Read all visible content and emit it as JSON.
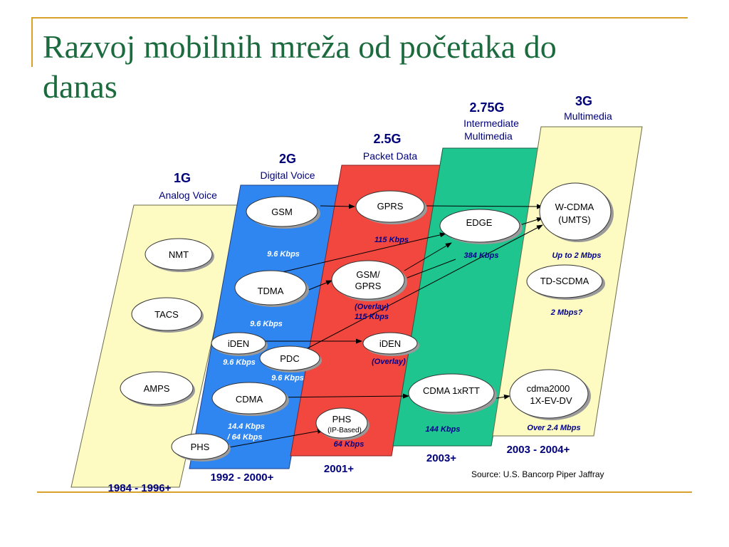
{
  "slide": {
    "title_line1": "Razvoj mobilnih mreža od početaka  do",
    "title_line2": "danas"
  },
  "colors": {
    "title": "#1c6b3e",
    "accent_line": "#d8a12a",
    "band_1g": "#fdfbc2",
    "band_2g": "#2f86f0",
    "band_2_5g": "#f2473f",
    "band_2_75g": "#1ec58e",
    "band_3g": "#fdfbc2",
    "label_blue": "#00007a"
  },
  "generations": [
    {
      "name": "1G",
      "subtitle": "Analog Voice",
      "years": "1984 - 1996+"
    },
    {
      "name": "2G",
      "subtitle": "Digital Voice",
      "years": "1992 - 2000+"
    },
    {
      "name": "2.5G",
      "subtitle": "Packet Data",
      "years": "2001+"
    },
    {
      "name": "2.75G",
      "subtitle_line1": "Intermediate",
      "subtitle_line2": "Multimedia",
      "years": "2003+"
    },
    {
      "name": "3G",
      "subtitle": "Multimedia",
      "years": "2003 - 2004+"
    }
  ],
  "technologies": {
    "nmt": "NMT",
    "tacs": "TACS",
    "amps": "AMPS",
    "gsm": "GSM",
    "tdma": "TDMA",
    "iden_2g": "iDEN",
    "pdc": "PDC",
    "cdma": "CDMA",
    "phs_2g": "PHS",
    "gprs": "GPRS",
    "gsm_gprs_line1": "GSM/",
    "gsm_gprs_line2": "GPRS",
    "iden_2_5g": "iDEN",
    "phs_ip_line1": "PHS",
    "phs_ip_line2": "(IP-Based)",
    "edge": "EDGE",
    "cdma_1xrtt": "CDMA 1xRTT",
    "wcdma_line1": "W-CDMA",
    "wcdma_line2": "(UMTS)",
    "td_scdma": "TD-SCDMA",
    "cdma2000_line1": "cdma2000",
    "cdma2000_line2": "1X-EV-DV"
  },
  "speeds": {
    "gsm": "9.6 Kbps",
    "tdma": "9.6 Kbps",
    "iden": "9.6 Kbps",
    "pdc": "9.6 Kbps",
    "cdma_line1": "14.4 Kbps",
    "cdma_line2": "/ 64 Kbps",
    "gprs": "115 Kbps",
    "gsm_gprs_line1": "(Overlay)",
    "gsm_gprs_line2": "115 Kbps",
    "iden_overlay": "(Overlay)",
    "phs": "64 Kbps",
    "edge": "384 Kbps",
    "cdma_1xrtt": "144 Kbps",
    "wcdma": "Up to 2 Mbps",
    "td_scdma": "2 Mbps?",
    "cdma2000": "Over 2.4 Mbps"
  },
  "source": "Source: U.S. Bancorp Piper Jaffray"
}
